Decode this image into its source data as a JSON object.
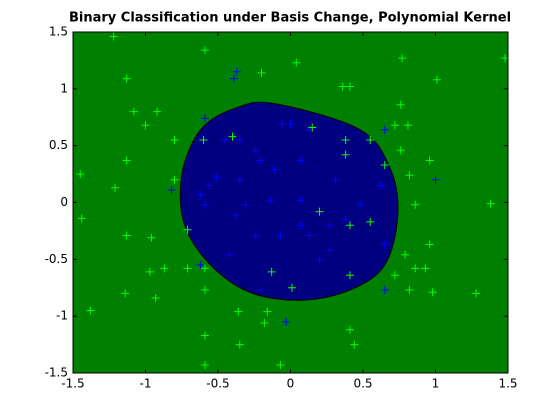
{
  "chart_data": {
    "type": "scatter",
    "title": "Binary Classification under Basis Change, Polynomial Kernel",
    "xlim": [
      -1.5,
      1.5
    ],
    "ylim": [
      -1.5,
      1.5
    ],
    "xticks": [
      -1.5,
      -1,
      -0.5,
      0,
      0.5,
      1,
      1.5
    ],
    "yticks": [
      -1.5,
      -1,
      -0.5,
      0,
      0.5,
      1,
      1.5
    ],
    "grid": false,
    "background_color": "#008000",
    "boundary": {
      "color": "#000080",
      "x": [
        -0.11,
        0.48,
        0.69,
        0.74,
        0.65,
        0.41,
        0.07,
        -0.28,
        -0.55,
        -0.73,
        -0.75,
        -0.62,
        -0.38
      ],
      "y": [
        0.87,
        0.64,
        0.29,
        -0.11,
        -0.55,
        -0.77,
        -0.86,
        -0.79,
        -0.55,
        -0.2,
        0.24,
        0.64,
        0.83
      ]
    },
    "series": [
      {
        "color": "#0000ff",
        "x": [
          -0.37,
          -0.39,
          -0.06,
          0.0,
          -0.59,
          0.13,
          0.65,
          -0.45,
          -0.35,
          -0.24,
          -0.21,
          0.07,
          -0.11,
          -0.51,
          -0.35,
          -0.56,
          -0.82,
          -0.62,
          0.31,
          0.62,
          -0.59,
          -0.31,
          -0.14,
          0.07,
          0.48,
          0.38,
          -0.38,
          0.07,
          0.27,
          -0.24,
          -0.07,
          0.13,
          0.65,
          -0.62,
          0.27,
          0.2,
          -0.42,
          -0.2,
          0.65,
          1.0,
          -0.03
        ],
        "y": [
          1.15,
          1.09,
          0.69,
          0.69,
          0.74,
          0.64,
          0.64,
          0.55,
          0.55,
          0.46,
          0.37,
          0.37,
          0.29,
          0.22,
          0.2,
          0.15,
          0.11,
          0.07,
          0.2,
          0.15,
          -0.02,
          -0.02,
          0.02,
          0.02,
          -0.02,
          -0.15,
          -0.11,
          -0.2,
          -0.2,
          -0.29,
          -0.29,
          -0.29,
          -0.37,
          -0.55,
          -0.42,
          -0.51,
          -0.46,
          -0.77,
          -0.77,
          0.2,
          -1.05
        ]
      },
      {
        "color": "#00ff00",
        "x": [
          -1.22,
          -0.59,
          -1.13,
          -0.2,
          0.04,
          0.36,
          0.41,
          0.77,
          1.01,
          1.48,
          -1.08,
          -0.92,
          -1.0,
          -0.8,
          -0.6,
          -0.4,
          0.15,
          0.38,
          0.38,
          0.55,
          0.72,
          0.81,
          0.76,
          0.76,
          0.96,
          -1.13,
          -1.45,
          -1.21,
          -0.8,
          0.65,
          0.82,
          0.86,
          1.38,
          -1.44,
          0.2,
          0.41,
          -1.13,
          -0.96,
          -0.71,
          0.55,
          0.79,
          0.96,
          0.86,
          0.93,
          -0.97,
          -0.87,
          -0.71,
          -0.59,
          -0.13,
          0.41,
          0.72,
          0.82,
          0.98,
          -1.14,
          -0.93,
          -0.59,
          0.01,
          1.28,
          -1.38,
          -0.36,
          -0.16,
          -0.18,
          0.41,
          0.44,
          -0.59,
          -0.35,
          -0.07,
          -0.59
        ],
        "y": [
          1.46,
          1.34,
          1.09,
          1.14,
          1.23,
          1.02,
          1.02,
          1.27,
          1.08,
          1.27,
          0.8,
          0.8,
          0.68,
          0.55,
          0.55,
          0.58,
          0.66,
          0.55,
          0.42,
          0.55,
          0.68,
          0.68,
          0.86,
          0.46,
          0.37,
          0.37,
          0.25,
          0.13,
          0.2,
          0.33,
          0.24,
          -0.02,
          -0.01,
          -0.14,
          -0.08,
          -0.2,
          -0.29,
          -0.31,
          -0.24,
          -0.17,
          -0.46,
          -0.37,
          -0.58,
          -0.58,
          -0.61,
          -0.58,
          -0.58,
          -0.58,
          -0.61,
          -0.64,
          -0.64,
          -0.77,
          -0.79,
          -0.8,
          -0.84,
          -0.77,
          -0.75,
          -0.8,
          -0.95,
          -0.96,
          -0.96,
          -1.06,
          -1.12,
          -1.25,
          -1.17,
          -1.25,
          -1.43,
          -1.43
        ]
      }
    ]
  }
}
